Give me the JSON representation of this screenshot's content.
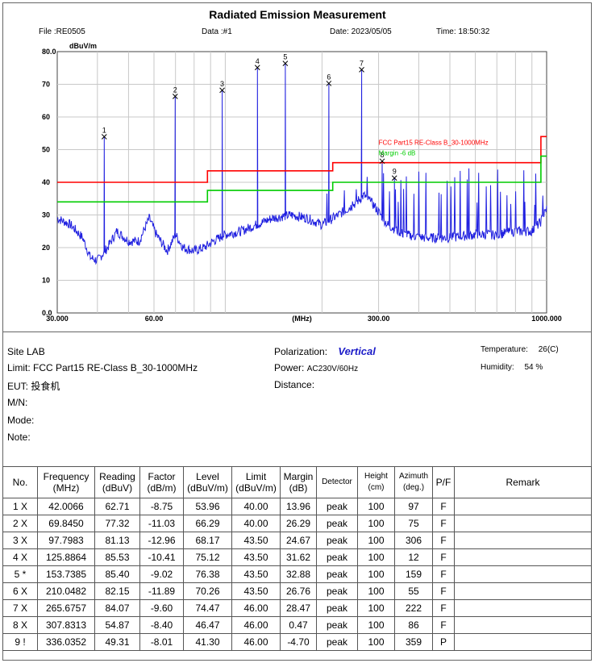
{
  "header": {
    "title": "Radiated Emission Measurement",
    "file": "File :RE0505",
    "data": "Data :#1",
    "date": "Date: 2023/05/05",
    "time": "Time: 18:50:32"
  },
  "chart_data": {
    "type": "line",
    "title": "Radiated Emission Measurement",
    "ylabel": "dBuV/m",
    "xlabel": "(MHz)",
    "xscale": "log",
    "xlim": [
      30,
      1000
    ],
    "ylim": [
      0,
      80
    ],
    "y_ticks": [
      0,
      10,
      20,
      30,
      40,
      50,
      60,
      70,
      80
    ],
    "y_tick_labels": [
      "0.0",
      "10",
      "20",
      "30",
      "40",
      "50",
      "60",
      "70",
      "80.0"
    ],
    "x_tick_labels": [
      {
        "value": 30,
        "label": "30.000"
      },
      {
        "value": 60,
        "label": "60.00"
      },
      {
        "value": 173.2,
        "label": "(MHz)"
      },
      {
        "value": 300,
        "label": "300.00"
      },
      {
        "value": 1000,
        "label": "1000.000"
      }
    ],
    "grid": true,
    "series": [
      {
        "name": "FCC Part15 RE-Class B_30-1000MHz",
        "color": "#ff0000",
        "points": [
          [
            30,
            40
          ],
          [
            88,
            40
          ],
          [
            88,
            43.5
          ],
          [
            216,
            43.5
          ],
          [
            216,
            46
          ],
          [
            960,
            46
          ],
          [
            960,
            54
          ],
          [
            1000,
            54
          ]
        ]
      },
      {
        "name": "Margin -6 dB",
        "color": "#00cc00",
        "points": [
          [
            30,
            34
          ],
          [
            88,
            34
          ],
          [
            88,
            37.5
          ],
          [
            216,
            37.5
          ],
          [
            216,
            40
          ],
          [
            960,
            40
          ],
          [
            960,
            48
          ],
          [
            1000,
            48
          ]
        ]
      },
      {
        "name": "Vertical",
        "color": "#2020e0",
        "baseline": [
          [
            30,
            29
          ],
          [
            33,
            27
          ],
          [
            36,
            23
          ],
          [
            38,
            17
          ],
          [
            40,
            16
          ],
          [
            43,
            20
          ],
          [
            46,
            25
          ],
          [
            50,
            22
          ],
          [
            54,
            22
          ],
          [
            58,
            29
          ],
          [
            61,
            24
          ],
          [
            66,
            19
          ],
          [
            70,
            24
          ],
          [
            74,
            20
          ],
          [
            80,
            19
          ],
          [
            86,
            20
          ],
          [
            92,
            22
          ],
          [
            100,
            24
          ],
          [
            112,
            25
          ],
          [
            125,
            27
          ],
          [
            140,
            29
          ],
          [
            160,
            30
          ],
          [
            180,
            29
          ],
          [
            200,
            27
          ],
          [
            225,
            30
          ],
          [
            250,
            33
          ],
          [
            270,
            36
          ],
          [
            290,
            33
          ],
          [
            320,
            27
          ],
          [
            360,
            24
          ],
          [
            420,
            23
          ],
          [
            500,
            23
          ],
          [
            600,
            24
          ],
          [
            700,
            24
          ],
          [
            800,
            25
          ],
          [
            900,
            25
          ],
          [
            960,
            28
          ],
          [
            1000,
            32
          ]
        ],
        "spikes": [
          [
            42.0066,
            53.96
          ],
          [
            69.845,
            66.29
          ],
          [
            97.7983,
            68.17
          ],
          [
            125.8864,
            75.12
          ],
          [
            153.7385,
            76.38
          ],
          [
            210.0482,
            70.26
          ],
          [
            265.6757,
            74.47
          ],
          [
            307.8313,
            46.47
          ],
          [
            336.0352,
            41.3
          ]
        ]
      }
    ],
    "markers": [
      {
        "label": "1",
        "freq": 42.0066,
        "level": 53.96
      },
      {
        "label": "2",
        "freq": 69.845,
        "level": 66.29
      },
      {
        "label": "3",
        "freq": 97.7983,
        "level": 68.17
      },
      {
        "label": "4",
        "freq": 125.8864,
        "level": 75.12
      },
      {
        "label": "5",
        "freq": 153.7385,
        "level": 76.38
      },
      {
        "label": "6",
        "freq": 210.0482,
        "level": 70.26
      },
      {
        "label": "7",
        "freq": 265.6757,
        "level": 74.47
      },
      {
        "label": "8",
        "freq": 307.8313,
        "level": 46.47
      },
      {
        "label": "9",
        "freq": 336.0352,
        "level": 41.3
      }
    ],
    "annotations": [
      {
        "text": "FCC Part15 RE-Class B_30-1000MHz",
        "color": "#ff0000",
        "x": 300,
        "y": 51.5
      },
      {
        "text": "Margin -6 dB",
        "color": "#00cc00",
        "x": 300,
        "y": 48.3
      }
    ]
  },
  "info": {
    "site": "Site LAB",
    "limit": "Limit: FCC Part15 RE-Class B_30-1000MHz",
    "eut": "EUT: 投食机",
    "mn": "M/N:",
    "mode": "Mode:",
    "note": "Note:",
    "polarization_label": "Polarization:",
    "polarization_value": "Vertical",
    "power": "Power:",
    "power_value": "AC230V/60Hz",
    "distance": "Distance:",
    "temperature_label": "Temperature:",
    "temperature_value": "26(C)",
    "humidity_label": "Humidity:",
    "humidity_value": "54 %"
  },
  "table": {
    "headers": {
      "no": "No.",
      "freq1": "Frequency",
      "freq2": "(MHz)",
      "read1": "Reading",
      "read2": "(dBuV)",
      "fac1": "Factor",
      "fac2": "(dB/m)",
      "lev1": "Level",
      "lev2": "(dBuV/m)",
      "lim1": "Limit",
      "lim2": "(dBuV/m)",
      "mar1": "Margin",
      "mar2": "(dB)",
      "det": "Detector",
      "h1": "Height",
      "h2": "(cm)",
      "az1": "Azimuth",
      "az2": "(deg.)",
      "pf": "P/F",
      "rem": "Remark"
    },
    "rows": [
      {
        "no": "1  X",
        "freq": "42.0066",
        "reading": "62.71",
        "factor": "-8.75",
        "level": "53.96",
        "limit": "40.00",
        "margin": "13.96",
        "detector": "peak",
        "height": "100",
        "azimuth": "97",
        "pf": "F",
        "remark": ""
      },
      {
        "no": "2  X",
        "freq": "69.8450",
        "reading": "77.32",
        "factor": "-11.03",
        "level": "66.29",
        "limit": "40.00",
        "margin": "26.29",
        "detector": "peak",
        "height": "100",
        "azimuth": "75",
        "pf": "F",
        "remark": ""
      },
      {
        "no": "3  X",
        "freq": "97.7983",
        "reading": "81.13",
        "factor": "-12.96",
        "level": "68.17",
        "limit": "43.50",
        "margin": "24.67",
        "detector": "peak",
        "height": "100",
        "azimuth": "306",
        "pf": "F",
        "remark": ""
      },
      {
        "no": "4  X",
        "freq": "125.8864",
        "reading": "85.53",
        "factor": "-10.41",
        "level": "75.12",
        "limit": "43.50",
        "margin": "31.62",
        "detector": "peak",
        "height": "100",
        "azimuth": "12",
        "pf": "F",
        "remark": ""
      },
      {
        "no": "5  *",
        "freq": "153.7385",
        "reading": "85.40",
        "factor": "-9.02",
        "level": "76.38",
        "limit": "43.50",
        "margin": "32.88",
        "detector": "peak",
        "height": "100",
        "azimuth": "159",
        "pf": "F",
        "remark": ""
      },
      {
        "no": "6  X",
        "freq": "210.0482",
        "reading": "82.15",
        "factor": "-11.89",
        "level": "70.26",
        "limit": "43.50",
        "margin": "26.76",
        "detector": "peak",
        "height": "100",
        "azimuth": "55",
        "pf": "F",
        "remark": ""
      },
      {
        "no": "7  X",
        "freq": "265.6757",
        "reading": "84.07",
        "factor": "-9.60",
        "level": "74.47",
        "limit": "46.00",
        "margin": "28.47",
        "detector": "peak",
        "height": "100",
        "azimuth": "222",
        "pf": "F",
        "remark": ""
      },
      {
        "no": "8  X",
        "freq": "307.8313",
        "reading": "54.87",
        "factor": "-8.40",
        "level": "46.47",
        "limit": "46.00",
        "margin": "0.47",
        "detector": "peak",
        "height": "100",
        "azimuth": "86",
        "pf": "F",
        "remark": ""
      },
      {
        "no": "9  !",
        "freq": "336.0352",
        "reading": "49.31",
        "factor": "-8.01",
        "level": "41.30",
        "limit": "46.00",
        "margin": "-4.70",
        "detector": "peak",
        "height": "100",
        "azimuth": "359",
        "pf": "P",
        "remark": ""
      }
    ]
  }
}
